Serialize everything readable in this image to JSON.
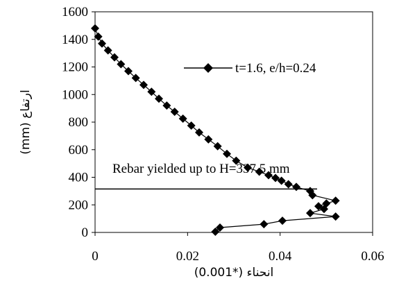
{
  "chart_data": {
    "type": "scatter",
    "xlabel": "انحناء (*0.001)",
    "ylabel": "ارتفاع (mm)",
    "xlim": [
      0,
      0.06
    ],
    "ylim": [
      0,
      1600
    ],
    "x_ticks": [
      "0",
      "0.02",
      "0.04",
      "0.06"
    ],
    "y_ticks": [
      "0",
      "200",
      "400",
      "600",
      "800",
      "1000",
      "1200",
      "1400",
      "1600"
    ],
    "grid": false,
    "legend_position": "top-right",
    "series": [
      {
        "name": "t=1.6, e/h=0.24",
        "marker": "diamond",
        "color": "#000000",
        "points": [
          [
            0.0,
            1480
          ],
          [
            0.0007,
            1420
          ],
          [
            0.0015,
            1370
          ],
          [
            0.0028,
            1320
          ],
          [
            0.0042,
            1270
          ],
          [
            0.0056,
            1220
          ],
          [
            0.0072,
            1170
          ],
          [
            0.0088,
            1120
          ],
          [
            0.0105,
            1070
          ],
          [
            0.0122,
            1020
          ],
          [
            0.0138,
            970
          ],
          [
            0.0155,
            920
          ],
          [
            0.0172,
            875
          ],
          [
            0.019,
            825
          ],
          [
            0.0208,
            775
          ],
          [
            0.0225,
            725
          ],
          [
            0.0245,
            675
          ],
          [
            0.0265,
            625
          ],
          [
            0.0285,
            570
          ],
          [
            0.0305,
            520
          ],
          [
            0.033,
            470
          ],
          [
            0.0355,
            440
          ],
          [
            0.0375,
            415
          ],
          [
            0.039,
            395
          ],
          [
            0.0403,
            375
          ],
          [
            0.0418,
            350
          ],
          [
            0.0435,
            330
          ],
          [
            0.0465,
            300
          ],
          [
            0.047,
            270
          ],
          [
            0.052,
            230
          ],
          [
            0.05,
            210
          ],
          [
            0.0483,
            190
          ],
          [
            0.0495,
            170
          ],
          [
            0.0465,
            140
          ],
          [
            0.052,
            115
          ],
          [
            0.0405,
            85
          ],
          [
            0.0365,
            60
          ],
          [
            0.027,
            35
          ],
          [
            0.026,
            5
          ]
        ]
      }
    ],
    "reference_line": {
      "y": 315,
      "x_range": [
        0,
        0.048
      ],
      "label": "Rebar yielded up to H=337.5 mm"
    }
  }
}
